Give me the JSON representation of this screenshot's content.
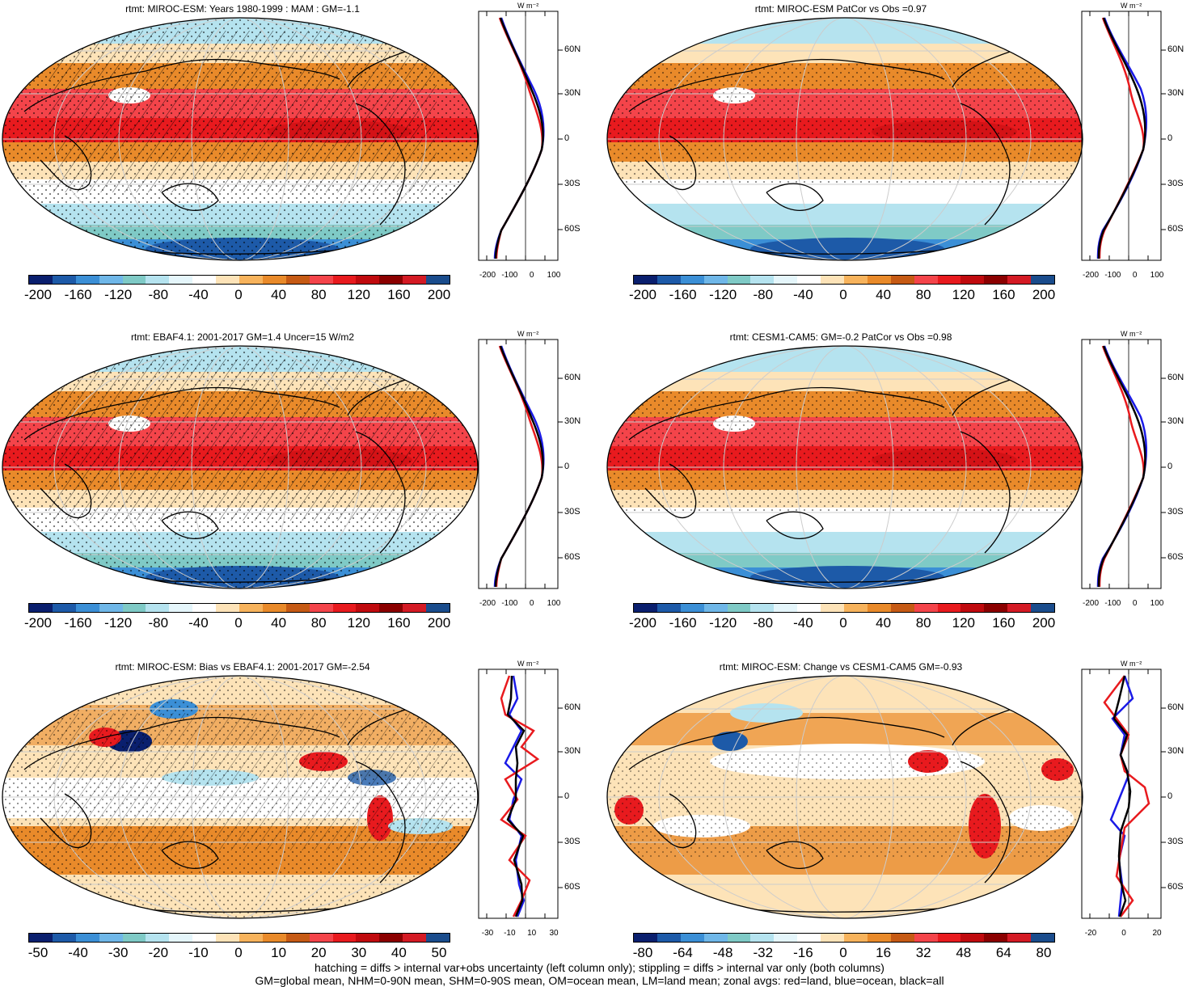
{
  "panels": [
    {
      "id": "p1",
      "title": "rtmt: MIROC-ESM: Years 1980-1999 : MAM : GM=-1.1",
      "colorbar_ticks": [
        "-200",
        "-160",
        "-120",
        "-80",
        "-40",
        "0",
        "40",
        "80",
        "120",
        "160",
        "200"
      ],
      "zonal_ticks": [
        "-200",
        "-100",
        "0",
        "100"
      ],
      "hatched": true
    },
    {
      "id": "p2",
      "title": "rtmt: MIROC-ESM PatCor vs Obs =0.97",
      "colorbar_ticks": [
        "-200",
        "-160",
        "-120",
        "-80",
        "-40",
        "0",
        "40",
        "80",
        "120",
        "160",
        "200"
      ],
      "zonal_ticks": [
        "-200",
        "-100",
        "0",
        "100"
      ],
      "hatched": false
    },
    {
      "id": "p3",
      "title": "rtmt: EBAF4.1: 2001-2017 GM=1.4 Uncer=15 W/m2",
      "colorbar_ticks": [
        "-200",
        "-160",
        "-120",
        "-80",
        "-40",
        "0",
        "40",
        "80",
        "120",
        "160",
        "200"
      ],
      "zonal_ticks": [
        "-200",
        "-100",
        "0",
        "100"
      ],
      "hatched": true
    },
    {
      "id": "p4",
      "title": "rtmt: CESM1-CAM5: GM=-0.2 PatCor vs Obs =0.98",
      "colorbar_ticks": [
        "-200",
        "-160",
        "-120",
        "-80",
        "-40",
        "0",
        "40",
        "80",
        "120",
        "160",
        "200"
      ],
      "zonal_ticks": [
        "-200",
        "-100",
        "0",
        "100"
      ],
      "hatched": false
    },
    {
      "id": "p5",
      "title": "rtmt: MIROC-ESM: Bias vs EBAF4.1: 2001-2017 GM=-2.54",
      "colorbar_ticks": [
        "-50",
        "-40",
        "-30",
        "-20",
        "-10",
        "0",
        "10",
        "20",
        "30",
        "40",
        "50"
      ],
      "zonal_ticks": [
        "-30",
        "-10",
        "10",
        "30"
      ],
      "hatched": true
    },
    {
      "id": "p6",
      "title": "rtmt: MIROC-ESM: Change vs CESM1-CAM5 GM=-0.93",
      "colorbar_ticks": [
        "-80",
        "-64",
        "-48",
        "-32",
        "-16",
        "0",
        "16",
        "32",
        "48",
        "64",
        "80"
      ],
      "zonal_ticks": [
        "-20",
        "0",
        "20"
      ],
      "hatched": false
    }
  ],
  "zonal_lat_labels": [
    "60N",
    "30N",
    "0",
    "30S",
    "60S"
  ],
  "zonal_units": "W m⁻²",
  "legend_colors": [
    "#0a1f6e",
    "#1d5aa8",
    "#3b8fd6",
    "#6fb7e8",
    "#7fcac6",
    "#b5e3ef",
    "#e5f6fb",
    "#ffffff",
    "#fde3b8",
    "#f7b35c",
    "#e98a2a",
    "#c65a14",
    "#f4444a",
    "#e81a1e",
    "#c00a0e",
    "#8b0000",
    "#d41a24",
    "#1a4c8c"
  ],
  "footer": {
    "line1": "hatching = diffs > internal var+obs uncertainty (left column only); stippling = diffs > internal var only (both columns)",
    "line2": "GM=global mean, NHM=0-90N mean, SHM=0-90S mean, OM=ocean mean, LM=land mean; zonal avgs: red=land, blue=ocean, black=all"
  }
}
